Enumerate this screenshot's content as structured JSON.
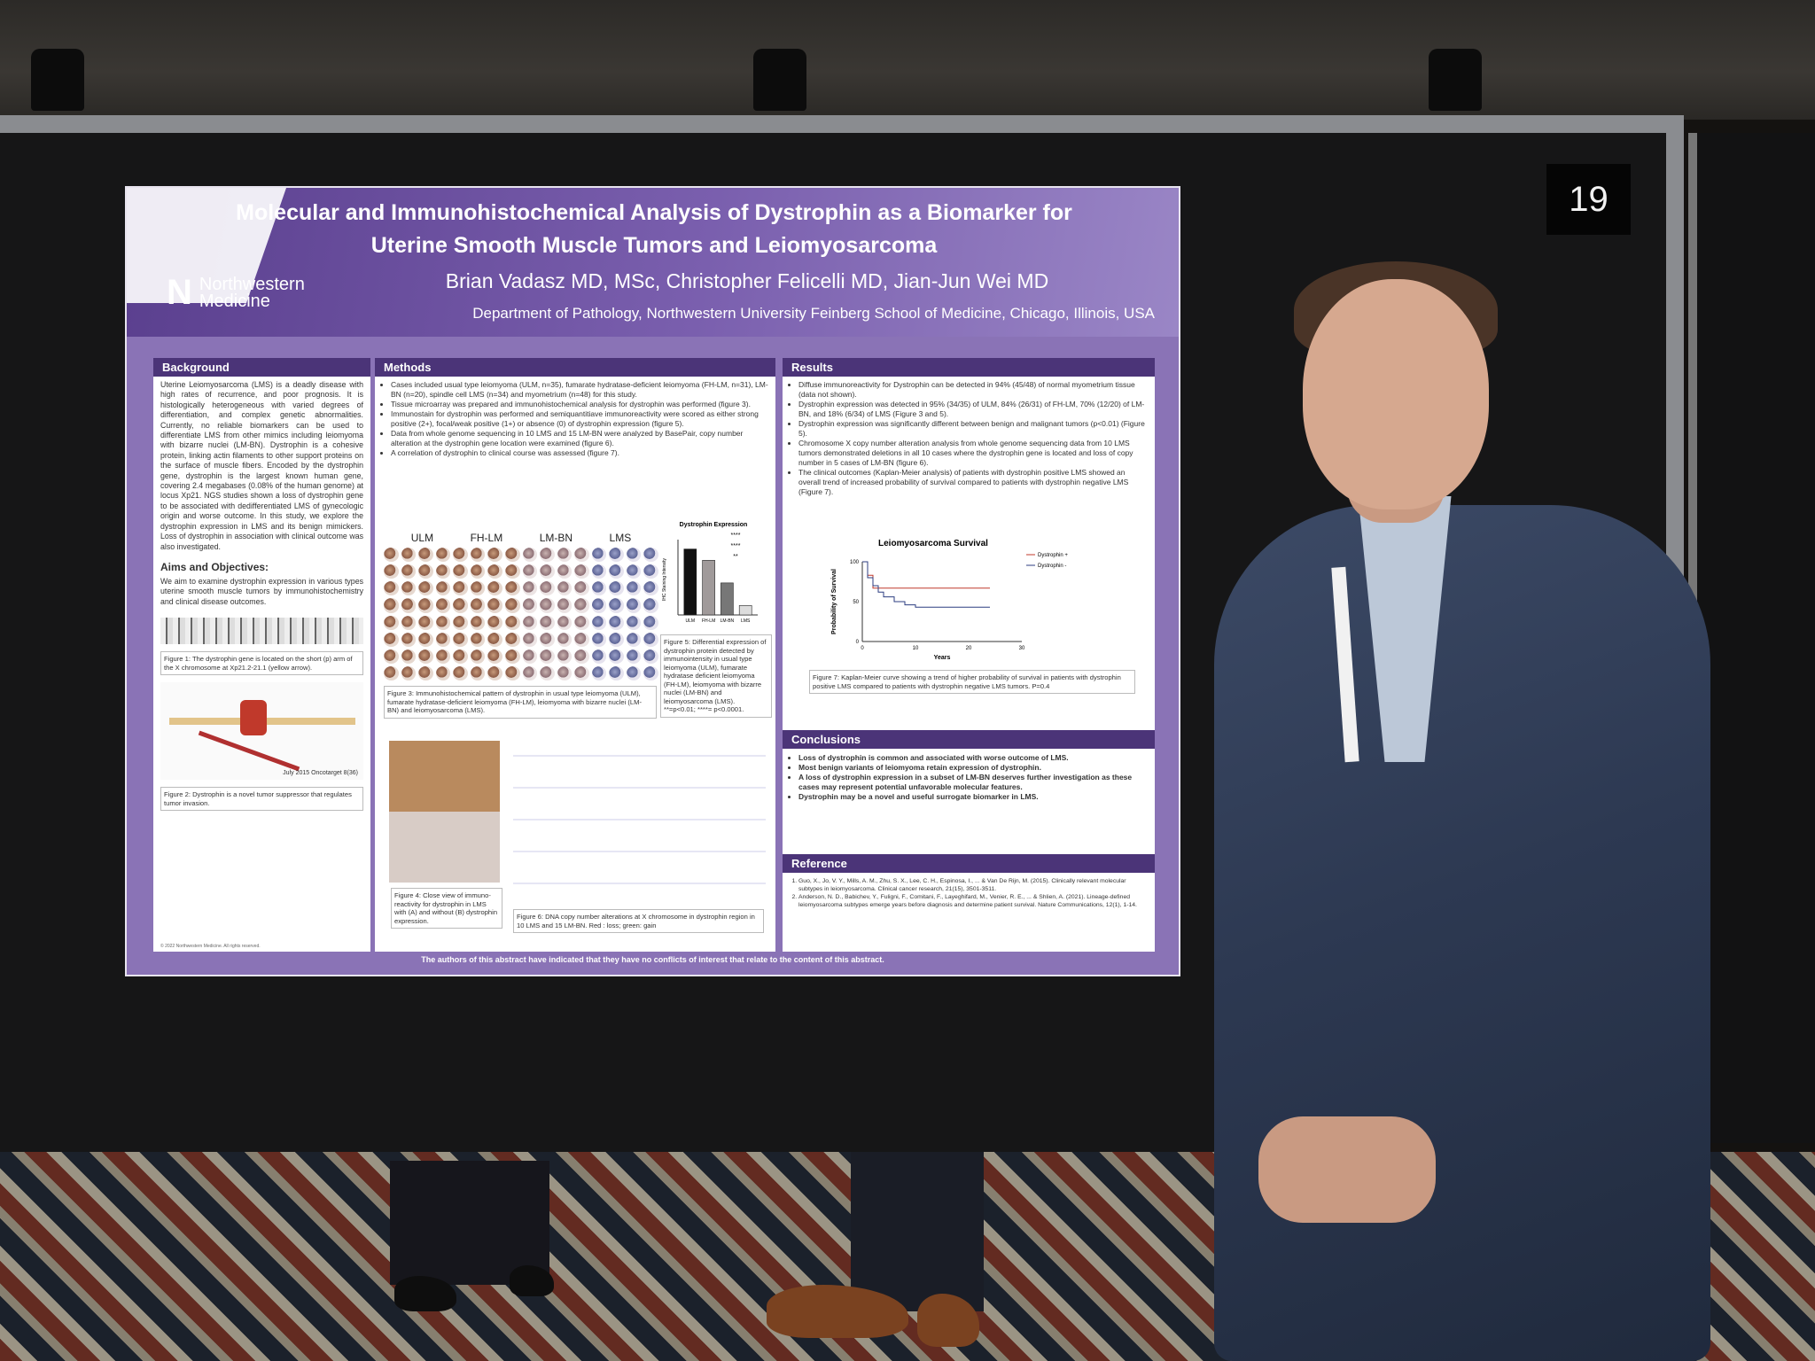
{
  "booth": {
    "number": "19"
  },
  "poster": {
    "title_line1": "Molecular and Immunohistochemical Analysis of Dystrophin as a Biomarker for",
    "title_line2": "Uterine Smooth Muscle Tumors and Leiomyosarcoma",
    "authors": "Brian Vadasz MD, MSc, Christopher Felicelli MD, Jian-Jun Wei MD",
    "department": "Department of Pathology, Northwestern University Feinberg School of Medicine, Chicago, Illinois, USA",
    "logo_line1": "Northwestern",
    "logo_line2": "Medicine",
    "background_head": "Background",
    "background_text": "Uterine Leiomyosarcoma (LMS) is a deadly disease with high rates of recurrence, and poor prognosis. It is histologically heterogeneous with varied degrees of differentiation, and complex genetic abnormalities. Currently, no reliable biomarkers can be used to differentiate LMS from other mimics including leiomyoma with bizarre nuclei (LM-BN). Dystrophin is a cohesive protein, linking actin filaments to other support proteins on the surface of muscle fibers. Encoded by the dystrophin gene, dystrophin is the largest known human gene, covering 2.4 megabases (0.08% of the human genome) at locus Xp21. NGS studies shown a loss of dystrophin gene to be associated with dedifferentiated LMS of gynecologic origin and worse outcome. In this study, we explore the dystrophin expression in LMS and its benign mimickers. Loss of dystrophin in association with clinical outcome was also investigated.",
    "aims_head": "Aims and Objectives:",
    "aims_text": "We aim to examine dystrophin expression in various types uterine smooth muscle tumors by immunohistochemistry and clinical disease outcomes.",
    "fig1_caption": "Figure 1: The dystrophin gene is located on the short (p) arm of the X chromosome at Xp21.2-21.1 (yellow arrow).",
    "fig2_caption": "Figure 2: Dystrophin is a novel tumor suppressor that regulates tumor invasion.",
    "fig2_ref": "July 2015 Oncotarget 8(36)",
    "methods_head": "Methods",
    "methods_items": [
      "Cases included usual type leiomyoma (ULM, n=35), fumarate hydratase-deficient leiomyoma (FH-LM, n=31), LM-BN (n=20), spindle cell LMS (n=34) and myometrium (n=48) for this study.",
      "Tissue microarray was prepared and immunohistochemical analysis for dystrophin was performed (figure 3).",
      "Immunostain for dystrophin was performed and semiquantitiave immunoreactivity were scored as either strong positive (2+), focal/weak positive (1+) or absence (0) of dystrophin expression (figure 5).",
      "Data from whole genome sequencing in 10 LMS and 15 LM-BN were analyzed by BasePair, copy number alteration at the dystrophin gene location were examined (figure 6).",
      "A correlation of dystrophin to clinical course was assessed (figure 7)."
    ],
    "tma_labels": [
      "ULM",
      "FH-LM",
      "LM-BN",
      "LMS"
    ],
    "fig3_caption": "Figure 3: Immunohistochemical pattern of dystrophin in usual type leiomyoma (ULM), fumarate hydratase-deficient leiomyoma (FH-LM), leiomyoma with bizarre nuclei (LM-BN) and leiomyosarcoma (LMS).",
    "fig5_caption": "Figure 5: Differential expression of dystrophin protein detected by immunointensity in usual type leiomyoma (ULM), fumarate hydratase deficient leiomyoma (FH-LM), leiomyoma with bizarre nuclei (LM-BN) and leiomyosarcoma (LMS). **=p<0.01; ****= p<0.0001.",
    "fig4_caption": "Figure 4: Close view of immuno-reactivity for dystrophin in LMS with (A) and without (B) dystrophin expression.",
    "fig6_caption": "Figure 6: DNA copy number alterations at X chromosome in dystrophin region in 10 LMS and 15 LM-BN. Red : loss; green: gain",
    "results_head": "Results",
    "results_items": [
      "Diffuse immunoreactivity for Dystrophin can be detected in 94% (45/48) of normal myometrium tissue (data not shown).",
      "Dystrophin expression was detected in 95% (34/35) of ULM, 84% (26/31) of FH-LM, 70% (12/20) of LM-BN, and 18% (6/34) of LMS (Figure 3 and 5).",
      "Dystrophin expression was significantly different between benign and malignant tumors (p<0.01) (Figure 5).",
      "Chromosome X copy number alteration analysis from whole genome sequencing data from 10 LMS tumors demonstrated deletions in all 10 cases where the dystrophin gene is located and loss of copy number in 5 cases of LM-BN (figure 6).",
      "The clinical outcomes (Kaplan-Meier analysis) of patients with dystrophin positive LMS showed an overall trend of increased probability of survival compared to patients with dystrophin negative LMS (Figure 7)."
    ],
    "fig7_caption": "Figure 7: Kaplan-Meier curve showing a trend of higher probability of survival in patients with dystrophin positive LMS compared to patients with dystrophin negative LMS tumors. P=0.4",
    "conclusions_head": "Conclusions",
    "conclusions_items": [
      "Loss of dystrophin is common and associated with worse outcome of LMS.",
      "Most benign variants of leiomyoma retain expression of dystrophin.",
      "A loss of dystrophin expression in a subset of LM-BN deserves further investigation as these cases may represent potential unfavorable molecular features.",
      "Dystrophin may be a novel and useful surrogate biomarker in LMS."
    ],
    "reference_head": "Reference",
    "references": [
      "Guo, X., Jo, V. Y., Mills, A. M., Zhu, S. X., Lee, C. H., Espinosa, I., ... & Van De Rijn, M. (2015). Clinically relevant molecular subtypes in leiomyosarcoma. Clinical cancer research, 21(15), 3501-3511.",
      "Anderson, N. D., Babichev, Y., Fuligni, F., Comitani, F., Layeghifard, M., Venier, R. E., ... & Shlien, A. (2021). Lineage-defined leiomyosarcoma subtypes emerge years before diagnosis and determine patient survival. Nature Communications, 12(1), 1-14."
    ],
    "disclosure": "The authors of this abstract have indicated that they have no conflicts of interest that relate to the content of this abstract.",
    "copyright": "© 2022 Northwestern Medicine. All rights reserved."
  },
  "chart_data": [
    {
      "type": "bar",
      "title": "Dystrophin Expression",
      "ylabel": "IHC Staining Intensity",
      "categories": [
        "ULM",
        "FH-LM",
        "LM-BN",
        "LMS"
      ],
      "values": [
        1.75,
        1.45,
        0.85,
        0.25
      ],
      "colors": [
        "#111111",
        "#a09a9a",
        "#777777",
        "#dddddd"
      ],
      "significance": [
        "****",
        "****",
        "**"
      ]
    },
    {
      "type": "line",
      "title": "Leiomyosarcoma Survival",
      "xlabel": "Years",
      "ylabel": "Probability of Survival",
      "xlim": [
        0,
        30
      ],
      "ylim": [
        0,
        100
      ],
      "x_ticks": [
        0,
        10,
        20,
        30
      ],
      "y_ticks": [
        0,
        50,
        100
      ],
      "series": [
        {
          "name": "Dystrophin +",
          "color": "#c0392b",
          "x": [
            0,
            1,
            2,
            3,
            24
          ],
          "y": [
            100,
            83,
            67,
            67,
            67
          ]
        },
        {
          "name": "Dystrophin -",
          "color": "#2c3e80",
          "x": [
            0,
            1,
            2,
            3,
            4,
            6,
            8,
            10,
            24
          ],
          "y": [
            100,
            80,
            70,
            62,
            56,
            50,
            46,
            43,
            43
          ]
        }
      ]
    }
  ]
}
